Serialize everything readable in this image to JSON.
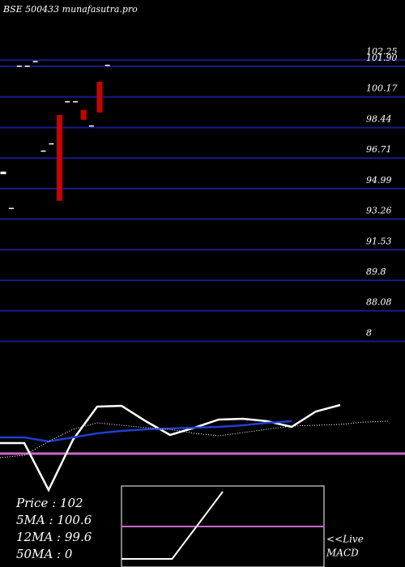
{
  "chart_data": {
    "type": "candlestick",
    "title": "BSE 500433 munafasutra.pro",
    "ylim": [
      85.5,
      105.65
    ],
    "yticks": [
      102.25,
      {
        "value": 101.9,
        "label": "101.90"
      },
      100.17,
      98.44,
      96.71,
      94.99,
      93.26,
      91.53,
      89.8,
      88.08,
      {
        "value": 86.35,
        "label": "8"
      }
    ],
    "grid_color": "#1a1a8c",
    "up_color": "#ffffff",
    "down_color": "#cc0000",
    "open": [
      95.8,
      93.9,
      101.94,
      101.94,
      102.2,
      97.14,
      97.55,
      99.15,
      99.93,
      99.93,
      99.43,
      98.56,
      101.03,
      101.99
    ],
    "close": [
      95.95,
      93.9,
      101.94,
      101.94,
      102.2,
      97.14,
      97.55,
      94.3,
      99.93,
      99.93,
      98.88,
      98.56,
      99.29,
      101.99
    ],
    "indicator": {
      "ylim": [
        0,
        125
      ],
      "level": 60,
      "level_color": "#cc66cc",
      "series": [
        {
          "color": "#ffffff",
          "style": "solid",
          "values": [
            73,
            73,
            15,
            77,
            118,
            119,
            100,
            83,
            92,
            102,
            103,
            100,
            93,
            112,
            120
          ]
        },
        {
          "color": "#1f3fd0",
          "style": "solid",
          "values": [
            80,
            80,
            75,
            80,
            85,
            88,
            90,
            91,
            92,
            93,
            95,
            98,
            100
          ]
        },
        {
          "color": "#ffffff",
          "style": "dotted",
          "values": [
            55,
            58,
            75,
            90,
            98,
            95,
            92,
            90,
            85,
            82,
            86,
            90,
            94,
            95,
            96,
            99,
            100
          ]
        }
      ]
    },
    "stats": [
      "Price : 102",
      "5MA : 100.6",
      "12MA : 99.6",
      "50MA : 0"
    ],
    "macd": {
      "label": [
        "<<Live",
        "MACD"
      ],
      "ylim": [
        0,
        100
      ],
      "level": 50,
      "level_color": "#cc66cc",
      "values": [
        10,
        10,
        93
      ]
    }
  }
}
